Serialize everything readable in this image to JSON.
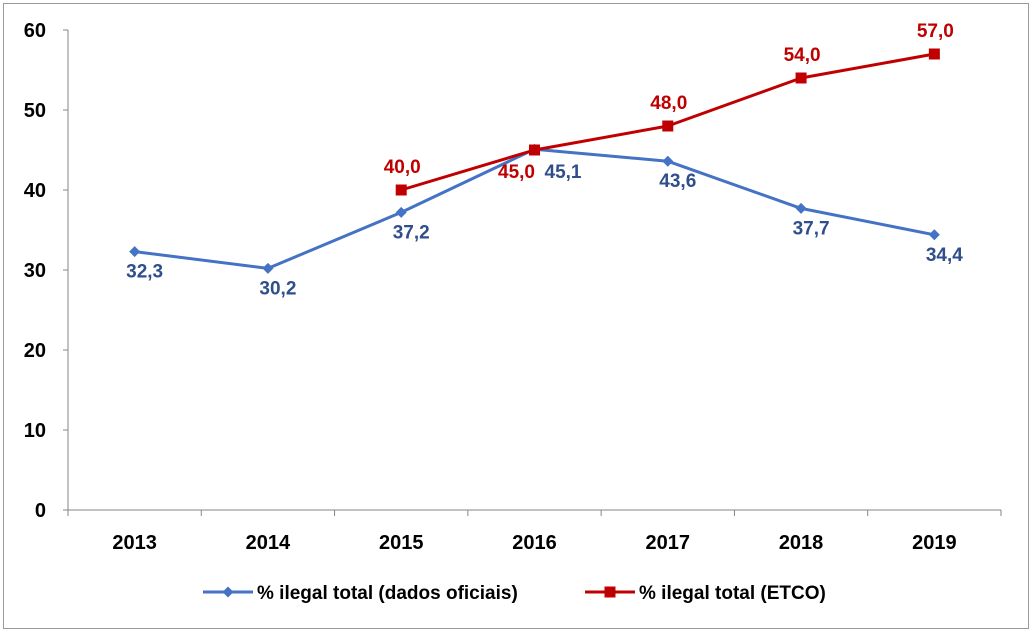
{
  "chart_data": {
    "type": "line",
    "categories": [
      "2013",
      "2014",
      "2015",
      "2016",
      "2017",
      "2018",
      "2019"
    ],
    "series": [
      {
        "name": "% ilegal total (dados oficiais)",
        "color": "#4472C4",
        "marker": "diamond",
        "values": [
          32.3,
          30.2,
          37.2,
          45.1,
          43.6,
          37.7,
          34.4
        ],
        "labels": [
          "32,3",
          "30,2",
          "37,2",
          "45,1",
          "43,6",
          "37,7",
          "34,4"
        ]
      },
      {
        "name": "% ilegal total (ETCO)",
        "color": "#C00000",
        "marker": "square",
        "values": [
          null,
          null,
          40.0,
          45.0,
          48.0,
          54.0,
          57.0
        ],
        "labels": [
          null,
          null,
          "40,0",
          "45,0",
          "48,0",
          "54,0",
          "57,0"
        ]
      }
    ],
    "ylim": [
      0,
      60
    ],
    "yticks": [
      0,
      10,
      20,
      30,
      40,
      50,
      60
    ],
    "grid": false,
    "legend": "bottom"
  }
}
